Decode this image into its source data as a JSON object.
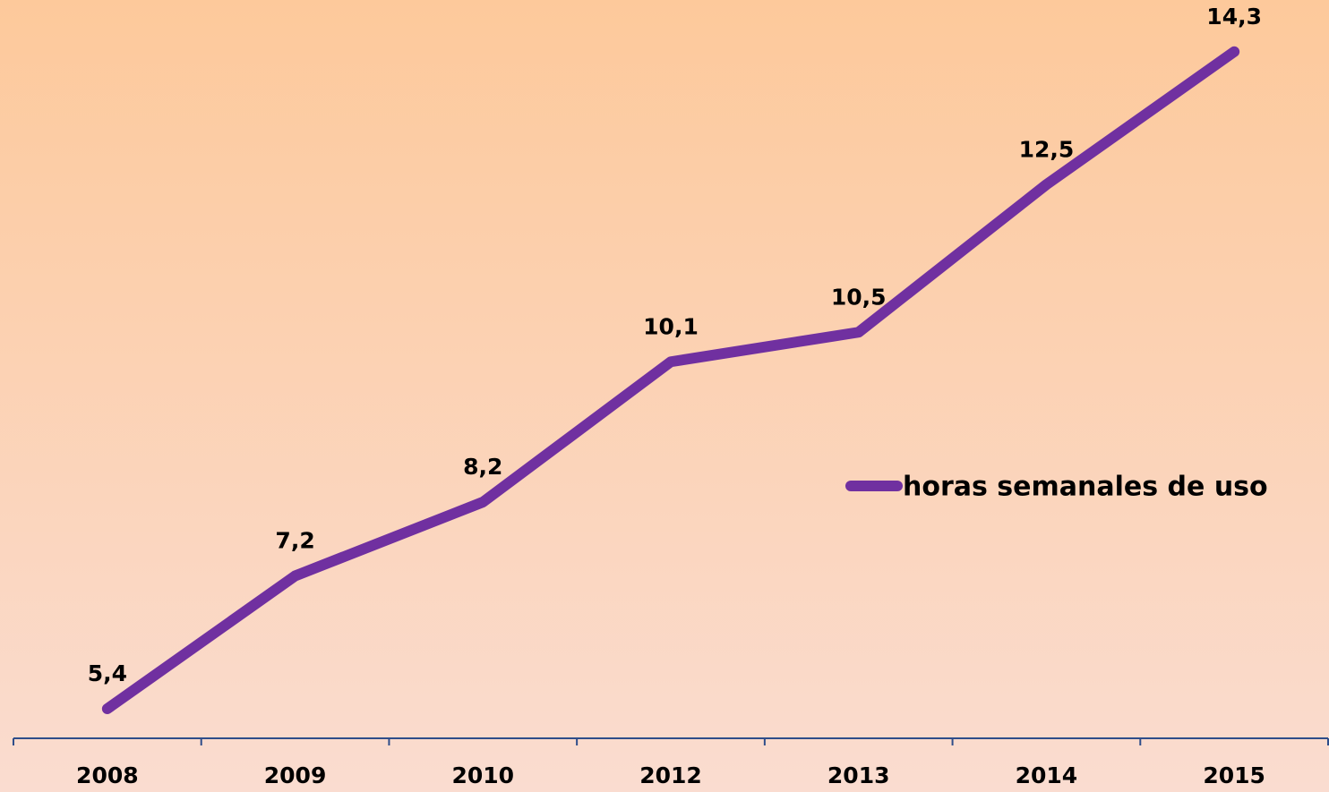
{
  "chart_data": {
    "type": "line",
    "categories": [
      "2008",
      "2009",
      "2010",
      "2012",
      "2013",
      "2014",
      "2015"
    ],
    "series": [
      {
        "name": "horas semanales de uso",
        "color": "#7030a0",
        "values": [
          5.4,
          7.2,
          8.2,
          10.1,
          10.5,
          12.5,
          14.3
        ],
        "value_labels": [
          "5,4",
          "7,2",
          "8,2",
          "10,1",
          "10,5",
          "12,5",
          "14,3"
        ]
      }
    ],
    "ylim": [
      5,
      15
    ],
    "legend": "right"
  }
}
